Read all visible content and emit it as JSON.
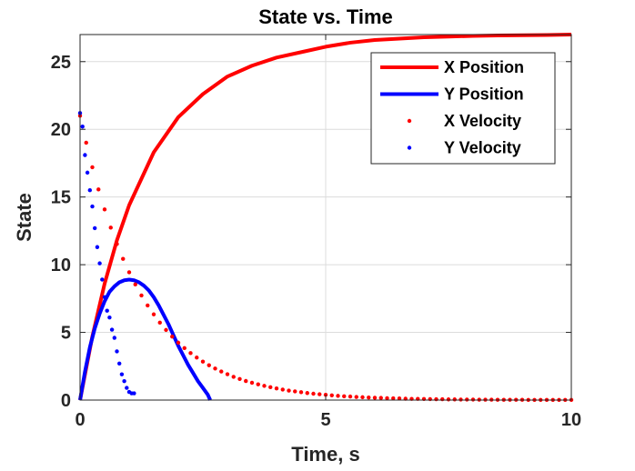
{
  "chart_data": {
    "type": "line",
    "title": "State vs. Time",
    "xlabel": "Time, s",
    "ylabel": "State",
    "xlim": [
      0,
      10
    ],
    "ylim": [
      0,
      27
    ],
    "xticks": [
      0,
      5,
      10
    ],
    "yticks": [
      0,
      5,
      10,
      15,
      20,
      25
    ],
    "grid": true,
    "legend_position": "top-right",
    "series": [
      {
        "name": "X Position",
        "style": "line",
        "color": "#ff0000",
        "x": [
          0,
          0.25,
          0.5,
          0.75,
          1,
          1.5,
          2,
          2.5,
          3,
          3.5,
          4,
          4.5,
          5,
          5.5,
          6,
          6.5,
          7,
          7.5,
          8,
          8.5,
          9,
          9.5,
          10
        ],
        "y": [
          0,
          4.7,
          8.6,
          11.8,
          14.4,
          18.3,
          20.9,
          22.6,
          23.9,
          24.7,
          25.3,
          25.7,
          26.1,
          26.4,
          26.6,
          26.7,
          26.8,
          26.85,
          26.9,
          26.93,
          26.95,
          26.97,
          27
        ]
      },
      {
        "name": "Y Position",
        "style": "line",
        "color": "#0000ff",
        "x": [
          0,
          0.1,
          0.2,
          0.3,
          0.4,
          0.5,
          0.6,
          0.7,
          0.8,
          0.9,
          1,
          1.1,
          1.2,
          1.3,
          1.4,
          1.5,
          1.6,
          1.7,
          1.8,
          1.9,
          2,
          2.1,
          2.2,
          2.3,
          2.4,
          2.5,
          2.6,
          2.65
        ],
        "y": [
          0,
          2.1,
          3.9,
          5.3,
          6.4,
          7.3,
          8.0,
          8.4,
          8.7,
          8.85,
          8.9,
          8.85,
          8.7,
          8.45,
          8.1,
          7.6,
          7.0,
          6.3,
          5.6,
          4.8,
          4.0,
          3.3,
          2.6,
          2.0,
          1.4,
          0.9,
          0.4,
          0
        ]
      },
      {
        "name": "X Velocity",
        "style": "dots",
        "color": "#ff0000",
        "x": [
          0,
          0.125,
          0.25,
          0.375,
          0.5,
          0.625,
          0.75,
          0.875,
          1,
          1.125,
          1.25,
          1.375,
          1.5,
          1.625,
          1.75,
          1.875,
          2,
          2.125,
          2.25,
          2.375,
          2.5,
          2.625,
          2.75,
          2.875,
          3,
          3.125,
          3.25,
          3.375,
          3.5,
          3.625,
          3.75,
          3.875,
          4,
          4.125,
          4.25,
          4.375,
          4.5,
          4.625,
          4.75,
          4.875,
          5,
          5.125,
          5.25,
          5.375,
          5.5,
          5.625,
          5.75,
          5.875,
          6,
          6.125,
          6.25,
          6.375,
          6.5,
          6.625,
          6.75,
          6.875,
          7,
          7.125,
          7.25,
          7.375,
          7.5,
          7.625,
          7.75,
          7.875,
          8,
          8.125,
          8.25,
          8.375,
          8.5,
          8.625,
          8.75,
          8.875,
          9,
          9.125,
          9.25,
          9.375,
          9.5,
          9.625,
          9.75,
          9.875,
          10
        ],
        "y": [
          21,
          19.01,
          17.2,
          15.56,
          14.08,
          12.74,
          11.53,
          10.43,
          9.44,
          8.54,
          7.73,
          6.99,
          6.33,
          5.72,
          5.18,
          4.69,
          4.24,
          3.84,
          3.47,
          3.14,
          2.84,
          2.57,
          2.33,
          2.11,
          1.91,
          1.72,
          1.56,
          1.41,
          1.28,
          1.16,
          1.05,
          0.95,
          0.86,
          0.78,
          0.7,
          0.64,
          0.58,
          0.52,
          0.47,
          0.43,
          0.39,
          0.35,
          0.31,
          0.28,
          0.26,
          0.23,
          0.21,
          0.19,
          0.17,
          0.16,
          0.14,
          0.13,
          0.12,
          0.1,
          0.09,
          0.09,
          0.08,
          0.07,
          0.06,
          0.06,
          0.05,
          0.05,
          0.04,
          0.04,
          0.04,
          0.03,
          0.03,
          0.03,
          0.02,
          0.02,
          0.02,
          0.02,
          0.02,
          0.01,
          0.01,
          0.01,
          0.01,
          0.01,
          0.01,
          0.01,
          0.01
        ]
      },
      {
        "name": "Y Velocity",
        "style": "dots",
        "color": "#0000ff",
        "x": [
          0,
          0.05,
          0.1,
          0.15,
          0.2,
          0.25,
          0.3,
          0.35,
          0.4,
          0.45,
          0.5,
          0.55,
          0.6,
          0.65,
          0.7,
          0.75,
          0.8,
          0.85,
          0.9,
          0.95,
          1.0,
          1.05,
          1.1
        ],
        "y": [
          21.2,
          20.2,
          18.1,
          16.8,
          15.5,
          14.3,
          12.7,
          11.3,
          10.1,
          8.9,
          7.6,
          6.6,
          6.1,
          5.2,
          4.6,
          3.6,
          2.7,
          1.9,
          1.4,
          0.9,
          0.6,
          0.5,
          0.5
        ]
      }
    ]
  }
}
